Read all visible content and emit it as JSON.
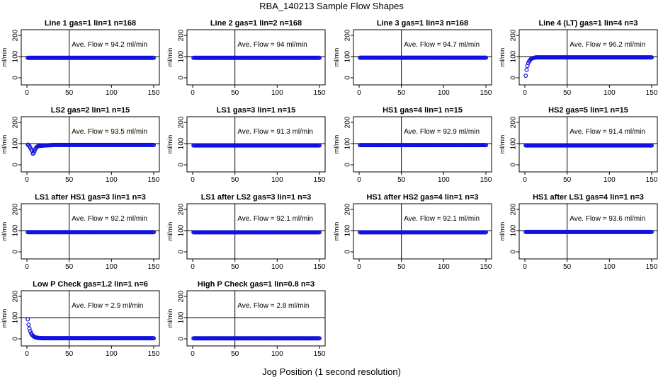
{
  "figure": {
    "title": "RBA_140213  Sample Flow Shapes",
    "xlabel": "Jog Position (1 second resolution)"
  },
  "chart_data": [
    {
      "type": "scatter",
      "title": "Line 1 gas=1 lin=1 n=168",
      "ylabel": "ml/min",
      "annotation": "Ave. Flow = 94.2  ml/min",
      "xlim": [
        0,
        150
      ],
      "ylim": [
        0,
        200
      ],
      "x_ticks": [
        0,
        50,
        100,
        150
      ],
      "y_ticks": [
        0,
        100,
        200
      ],
      "vline": 50,
      "hline": 100,
      "shape": "flat",
      "level": 94.2
    },
    {
      "type": "scatter",
      "title": "Line 2 gas=1 lin=2 n=168",
      "ylabel": "ml/min",
      "annotation": "Ave. Flow = 94  ml/min",
      "xlim": [
        0,
        150
      ],
      "ylim": [
        0,
        200
      ],
      "x_ticks": [
        0,
        50,
        100,
        150
      ],
      "y_ticks": [
        0,
        100,
        200
      ],
      "vline": 50,
      "hline": 100,
      "shape": "flat",
      "level": 94
    },
    {
      "type": "scatter",
      "title": "Line 3 gas=1 lin=3 n=168",
      "ylabel": "ml/min",
      "annotation": "Ave. Flow = 94.7  ml/min",
      "xlim": [
        0,
        150
      ],
      "ylim": [
        0,
        200
      ],
      "x_ticks": [
        0,
        50,
        100,
        150
      ],
      "y_ticks": [
        0,
        100,
        200
      ],
      "vline": 50,
      "hline": 100,
      "shape": "flat",
      "level": 94.7
    },
    {
      "type": "scatter",
      "title": "Line 4 (LT) gas=1 lin=4 n=3",
      "ylabel": "ml/min",
      "annotation": "Ave. Flow = 96.2  ml/min",
      "xlim": [
        0,
        150
      ],
      "ylim": [
        0,
        200
      ],
      "x_ticks": [
        0,
        50,
        100,
        150
      ],
      "y_ticks": [
        0,
        100,
        200
      ],
      "vline": 50,
      "hline": 100,
      "shape": "rise",
      "level": 96.2,
      "start": 10
    },
    {
      "type": "scatter",
      "title": "LS2 gas=2 lin=1 n=15",
      "ylabel": "ml/min",
      "annotation": "Ave. Flow = 93.5  ml/min",
      "xlim": [
        0,
        150
      ],
      "ylim": [
        0,
        200
      ],
      "x_ticks": [
        0,
        50,
        100,
        150
      ],
      "y_ticks": [
        0,
        100,
        200
      ],
      "vline": 50,
      "hline": 100,
      "shape": "dip",
      "level": 93.5,
      "start": 95
    },
    {
      "type": "scatter",
      "title": "LS1 gas=3 lin=1 n=15",
      "ylabel": "ml/min",
      "annotation": "Ave. Flow = 91.3  ml/min",
      "xlim": [
        0,
        150
      ],
      "ylim": [
        0,
        200
      ],
      "x_ticks": [
        0,
        50,
        100,
        150
      ],
      "y_ticks": [
        0,
        100,
        200
      ],
      "vline": 50,
      "hline": 100,
      "shape": "flat",
      "level": 91.3
    },
    {
      "type": "scatter",
      "title": "HS1 gas=4 lin=1 n=15",
      "ylabel": "ml/min",
      "annotation": "Ave. Flow = 92.9  ml/min",
      "xlim": [
        0,
        150
      ],
      "ylim": [
        0,
        200
      ],
      "x_ticks": [
        0,
        50,
        100,
        150
      ],
      "y_ticks": [
        0,
        100,
        200
      ],
      "vline": 50,
      "hline": 100,
      "shape": "flat",
      "level": 92.9
    },
    {
      "type": "scatter",
      "title": "HS2 gas=5 lin=1 n=15",
      "ylabel": "ml/min",
      "annotation": "Ave. Flow = 91.4  ml/min",
      "xlim": [
        0,
        150
      ],
      "ylim": [
        0,
        200
      ],
      "x_ticks": [
        0,
        50,
        100,
        150
      ],
      "y_ticks": [
        0,
        100,
        200
      ],
      "vline": 50,
      "hline": 100,
      "shape": "flat",
      "level": 91.4
    },
    {
      "type": "scatter",
      "title": "LS1 after HS1 gas=3 lin=1 n=3",
      "ylabel": "ml/min",
      "annotation": "Ave. Flow = 92.2  ml/min",
      "xlim": [
        0,
        150
      ],
      "ylim": [
        0,
        200
      ],
      "x_ticks": [
        0,
        50,
        100,
        150
      ],
      "y_ticks": [
        0,
        100,
        200
      ],
      "vline": 50,
      "hline": 100,
      "shape": "flat",
      "level": 92.2
    },
    {
      "type": "scatter",
      "title": "LS1 after LS2 gas=3 lin=1 n=3",
      "ylabel": "ml/min",
      "annotation": "Ave. Flow = 92.1  ml/min",
      "xlim": [
        0,
        150
      ],
      "ylim": [
        0,
        200
      ],
      "x_ticks": [
        0,
        50,
        100,
        150
      ],
      "y_ticks": [
        0,
        100,
        200
      ],
      "vline": 50,
      "hline": 100,
      "shape": "flat",
      "level": 92.1
    },
    {
      "type": "scatter",
      "title": "HS1 after HS2 gas=4 lin=1 n=3",
      "ylabel": "ml/min",
      "annotation": "Ave. Flow = 92.1  ml/min",
      "xlim": [
        0,
        150
      ],
      "ylim": [
        0,
        200
      ],
      "x_ticks": [
        0,
        50,
        100,
        150
      ],
      "y_ticks": [
        0,
        100,
        200
      ],
      "vline": 50,
      "hline": 100,
      "shape": "flat",
      "level": 92.1
    },
    {
      "type": "scatter",
      "title": "HS1 after LS1 gas=4 lin=1 n=3",
      "ylabel": "ml/min",
      "annotation": "Ave. Flow = 93.6  ml/min",
      "xlim": [
        0,
        150
      ],
      "ylim": [
        0,
        200
      ],
      "x_ticks": [
        0,
        50,
        100,
        150
      ],
      "y_ticks": [
        0,
        100,
        200
      ],
      "vline": 50,
      "hline": 100,
      "shape": "flat",
      "level": 93.6
    },
    {
      "type": "scatter",
      "title": "Low P Check gas=1.2 lin=1 n=6",
      "ylabel": "ml/min",
      "annotation": "Ave. Flow = 2.9  ml/min",
      "xlim": [
        0,
        150
      ],
      "ylim": [
        0,
        200
      ],
      "x_ticks": [
        0,
        50,
        100,
        150
      ],
      "y_ticks": [
        0,
        100,
        200
      ],
      "vline": 50,
      "hline": 100,
      "shape": "decay",
      "level": 2.9,
      "start": 92
    },
    {
      "type": "scatter",
      "title": "High P Check gas=1 lin=0.8 n=3",
      "ylabel": "ml/min",
      "annotation": "Ave. Flow = 2.8  ml/min",
      "xlim": [
        0,
        150
      ],
      "ylim": [
        0,
        200
      ],
      "x_ticks": [
        0,
        50,
        100,
        150
      ],
      "y_ticks": [
        0,
        100,
        200
      ],
      "vline": 50,
      "hline": 100,
      "shape": "flat",
      "level": 2.8
    }
  ]
}
